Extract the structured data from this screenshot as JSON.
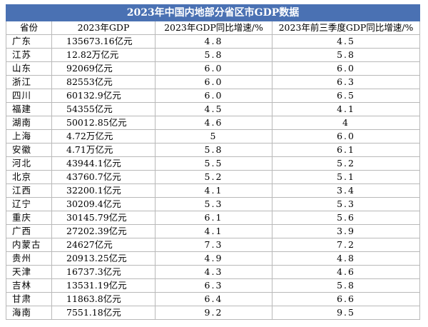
{
  "title": "2023年中国内地部分省区市GDP数据",
  "headers": {
    "province": "省份",
    "gdp": "2023年GDP",
    "growth_2023": "2023年GDP同比增速/%",
    "growth_q3": "2023年前三季度GDP同比增速/%"
  },
  "rows": [
    {
      "province": "广东",
      "gdp": "135673.16亿元",
      "growth_2023": "4.8",
      "growth_q3": "4.5"
    },
    {
      "province": "江苏",
      "gdp": "12.82万亿元",
      "growth_2023": "5.8",
      "growth_q3": "5.8"
    },
    {
      "province": "山东",
      "gdp": "92069亿元",
      "growth_2023": "6.0",
      "growth_q3": "6.0"
    },
    {
      "province": "浙江",
      "gdp": "82553亿元",
      "growth_2023": "6.0",
      "growth_q3": "6.3"
    },
    {
      "province": "四川",
      "gdp": "60132.9亿元",
      "growth_2023": "6.0",
      "growth_q3": "6.5"
    },
    {
      "province": "福建",
      "gdp": "54355亿元",
      "growth_2023": "4.5",
      "growth_q3": "4.1"
    },
    {
      "province": "湖南",
      "gdp": "50012.85亿元",
      "growth_2023": "4.6",
      "growth_q3": "4"
    },
    {
      "province": "上海",
      "gdp": "4.72万亿元",
      "growth_2023": "5",
      "growth_q3": "6.0"
    },
    {
      "province": "安徽",
      "gdp": "4.71万亿元",
      "growth_2023": "5.8",
      "growth_q3": "6.1"
    },
    {
      "province": "河北",
      "gdp": "43944.1亿元",
      "growth_2023": "5.5",
      "growth_q3": "5.2"
    },
    {
      "province": "北京",
      "gdp": "43760.7亿元",
      "growth_2023": "5.2",
      "growth_q3": "5.1"
    },
    {
      "province": "江西",
      "gdp": "32200.1亿元",
      "growth_2023": "4.1",
      "growth_q3": "3.4"
    },
    {
      "province": "辽宁",
      "gdp": "30209.4亿元",
      "growth_2023": "5.3",
      "growth_q3": "5.3"
    },
    {
      "province": "重庆",
      "gdp": "30145.79亿元",
      "growth_2023": "6.1",
      "growth_q3": "5.6"
    },
    {
      "province": "广西",
      "gdp": "27202.39亿元",
      "growth_2023": "4.1",
      "growth_q3": "3.9"
    },
    {
      "province": "内蒙古",
      "gdp": "24627亿元",
      "growth_2023": "7.3",
      "growth_q3": "7.2"
    },
    {
      "province": "贵州",
      "gdp": "20913.25亿元",
      "growth_2023": "4.9",
      "growth_q3": "4.8"
    },
    {
      "province": "天津",
      "gdp": "16737.3亿元",
      "growth_2023": "4.3",
      "growth_q3": "4.6"
    },
    {
      "province": "吉林",
      "gdp": "13531.19亿元",
      "growth_2023": "6.3",
      "growth_q3": "5.8"
    },
    {
      "province": "甘肃",
      "gdp": "11863.8亿元",
      "growth_2023": "6.4",
      "growth_q3": "6.6"
    },
    {
      "province": "海南",
      "gdp": "7551.18亿元",
      "growth_2023": "9.2",
      "growth_q3": "9.5"
    }
  ],
  "colors": {
    "title_background": "#4a71b3",
    "title_text": "#ffffff",
    "grid_line": "#b9b9b9"
  }
}
